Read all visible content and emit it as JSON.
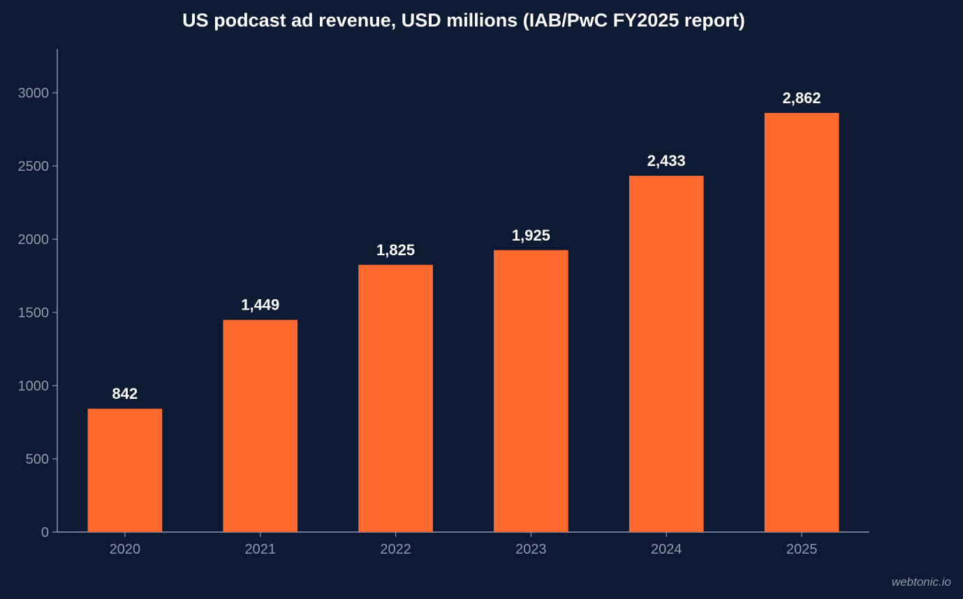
{
  "watermark": "webtonic.io",
  "colors": {
    "background": "#0c1b33",
    "bar": "#ff6b2e",
    "axis": "#8d9ab0",
    "text": "#ffffff"
  },
  "chart_data": {
    "type": "bar",
    "title": "US podcast ad revenue, USD millions (IAB/PwC FY2025 report)",
    "xlabel": "",
    "ylabel": "",
    "categories": [
      "2020",
      "2021",
      "2022",
      "2023",
      "2024",
      "2025"
    ],
    "values": [
      842,
      1449,
      1825,
      1925,
      2433,
      2862
    ],
    "data_labels": [
      "842",
      "1,449",
      "1,825",
      "1,925",
      "2,433",
      "2,862"
    ],
    "ylim": [
      0,
      3300
    ],
    "yticks": [
      0,
      500,
      1000,
      1500,
      2000,
      2500,
      3000
    ],
    "grid": false,
    "legend": "none"
  }
}
